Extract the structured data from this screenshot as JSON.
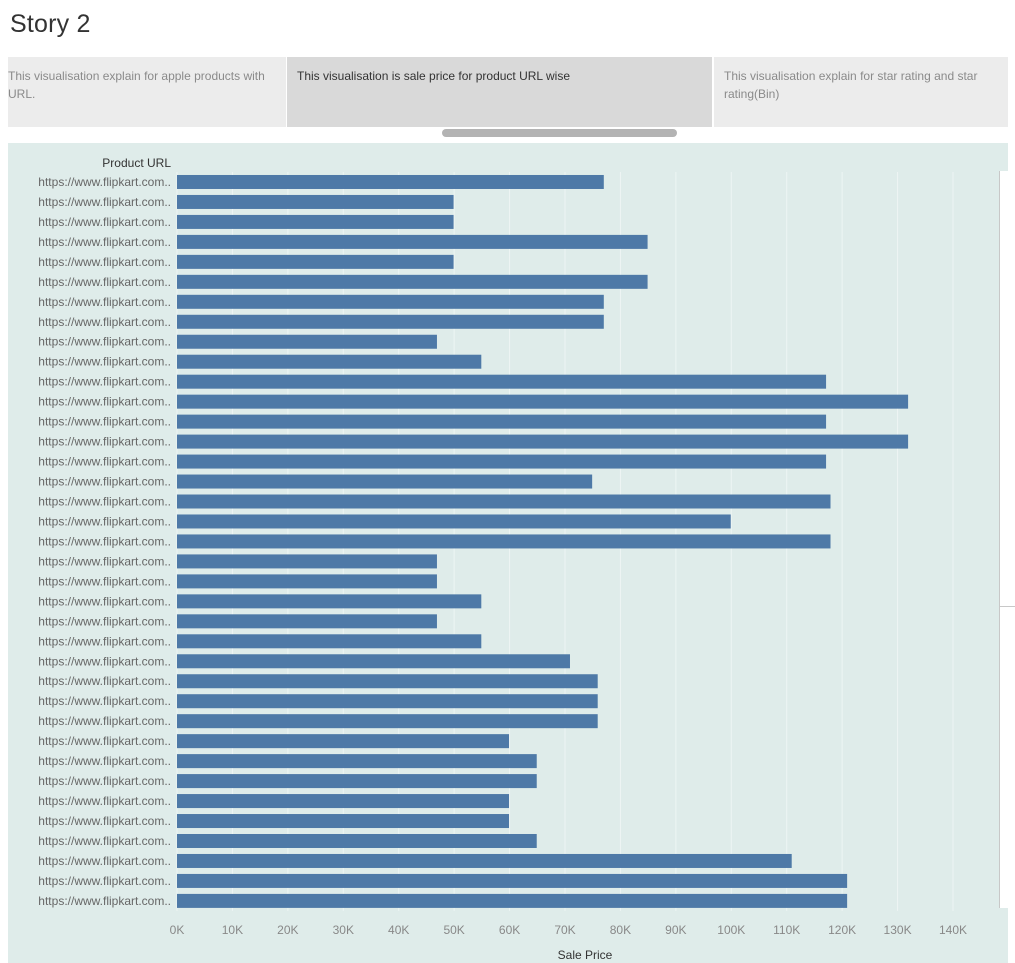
{
  "story": {
    "title": "Story 2"
  },
  "navigator": {
    "points": [
      {
        "text": "This visualisation explain for apple products with URL.",
        "active": false
      },
      {
        "text": "This visualisation is sale price for product URL wise",
        "active": true
      },
      {
        "text": "This visualisation explain for star rating and star rating(Bin)",
        "active": false
      }
    ]
  },
  "colors": {
    "bar": "#4e79a7",
    "background": "#dfecea",
    "gridline": "#eef5f4"
  },
  "chart_data": {
    "type": "bar",
    "orientation": "horizontal",
    "ylabel": "Product URL",
    "xlabel": "Sale Price",
    "xlim": [
      0,
      140000
    ],
    "x_ticks": [
      "0K",
      "10K",
      "20K",
      "30K",
      "40K",
      "50K",
      "60K",
      "70K",
      "80K",
      "90K",
      "100K",
      "110K",
      "120K",
      "130K",
      "140K"
    ],
    "categories": [
      "https://www.flipkart.com..",
      "https://www.flipkart.com..",
      "https://www.flipkart.com..",
      "https://www.flipkart.com..",
      "https://www.flipkart.com..",
      "https://www.flipkart.com..",
      "https://www.flipkart.com..",
      "https://www.flipkart.com..",
      "https://www.flipkart.com..",
      "https://www.flipkart.com..",
      "https://www.flipkart.com..",
      "https://www.flipkart.com..",
      "https://www.flipkart.com..",
      "https://www.flipkart.com..",
      "https://www.flipkart.com..",
      "https://www.flipkart.com..",
      "https://www.flipkart.com..",
      "https://www.flipkart.com..",
      "https://www.flipkart.com..",
      "https://www.flipkart.com..",
      "https://www.flipkart.com..",
      "https://www.flipkart.com..",
      "https://www.flipkart.com..",
      "https://www.flipkart.com..",
      "https://www.flipkart.com..",
      "https://www.flipkart.com..",
      "https://www.flipkart.com..",
      "https://www.flipkart.com..",
      "https://www.flipkart.com..",
      "https://www.flipkart.com..",
      "https://www.flipkart.com..",
      "https://www.flipkart.com..",
      "https://www.flipkart.com..",
      "https://www.flipkart.com..",
      "https://www.flipkart.com..",
      "https://www.flipkart.com..",
      "https://www.flipkart.com.."
    ],
    "values": [
      77000,
      49900,
      49900,
      84900,
      49900,
      84900,
      77000,
      77000,
      46900,
      54900,
      117100,
      131900,
      117100,
      131900,
      117100,
      74900,
      117900,
      99900,
      117900,
      46900,
      46900,
      54900,
      46900,
      54900,
      70900,
      75900,
      75900,
      75900,
      59900,
      64900,
      64900,
      59900,
      59900,
      64900,
      110900,
      120900,
      120900
    ],
    "grid": true,
    "legend": "none"
  }
}
